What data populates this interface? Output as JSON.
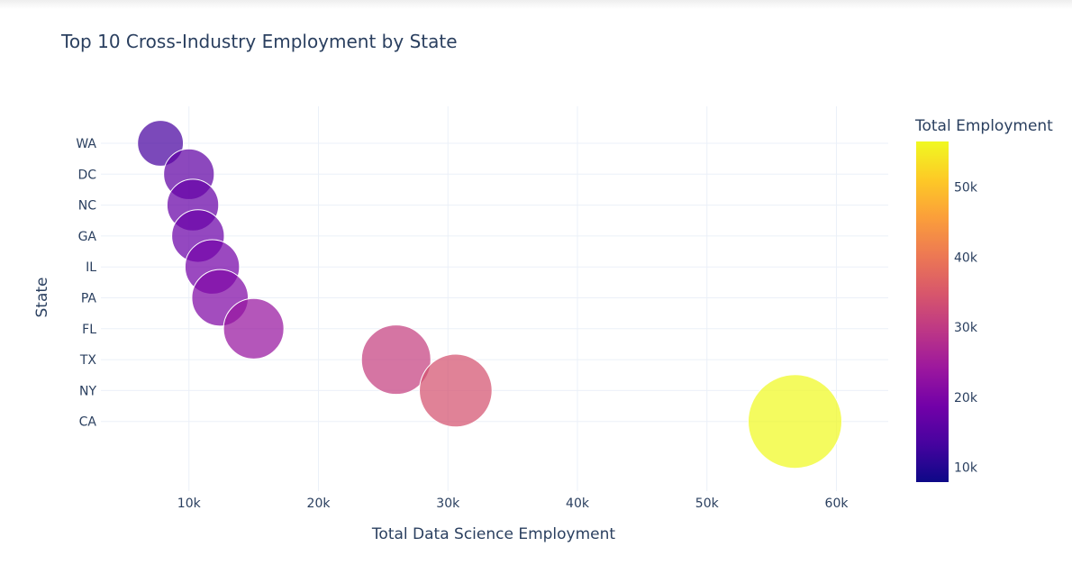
{
  "chart_data": {
    "type": "scatter",
    "title": "Top 10 Cross-Industry Employment by State",
    "xlabel": "Total Data Science Employment",
    "ylabel": "State",
    "xlim": [
      3200,
      64000
    ],
    "x_ticks": [
      {
        "value": 10000,
        "label": "10k"
      },
      {
        "value": 20000,
        "label": "20k"
      },
      {
        "value": 30000,
        "label": "30k"
      },
      {
        "value": 40000,
        "label": "40k"
      },
      {
        "value": 50000,
        "label": "50k"
      },
      {
        "value": 60000,
        "label": "60k"
      }
    ],
    "categories": [
      "WA",
      "DC",
      "NC",
      "GA",
      "IL",
      "PA",
      "FL",
      "TX",
      "NY",
      "CA"
    ],
    "points": [
      {
        "state": "WA",
        "x": 7800,
        "size_value": 13500
      },
      {
        "state": "DC",
        "x": 10000,
        "size_value": 16500
      },
      {
        "state": "NC",
        "x": 10300,
        "size_value": 17200
      },
      {
        "state": "GA",
        "x": 10700,
        "size_value": 17800
      },
      {
        "state": "IL",
        "x": 11800,
        "size_value": 19100
      },
      {
        "state": "PA",
        "x": 12400,
        "size_value": 20500
      },
      {
        "state": "FL",
        "x": 15000,
        "size_value": 23500
      },
      {
        "state": "TX",
        "x": 26000,
        "size_value": 31000
      },
      {
        "state": "NY",
        "x": 30600,
        "size_value": 34000
      },
      {
        "state": "CA",
        "x": 56800,
        "size_value": 56500
      }
    ],
    "grid": true,
    "colorbar": {
      "title": "Total Employment",
      "colorscale": "Plasma",
      "range": [
        7900,
        56500
      ],
      "ticks": [
        {
          "value": 10000,
          "label": "10k"
        },
        {
          "value": 20000,
          "label": "20k"
        },
        {
          "value": 30000,
          "label": "30k"
        },
        {
          "value": 40000,
          "label": "40k"
        },
        {
          "value": 50000,
          "label": "50k"
        }
      ],
      "stops": [
        "#0d0887",
        "#46039f",
        "#7201a8",
        "#9c179e",
        "#bd3786",
        "#d8576b",
        "#ed7953",
        "#fb9f3a",
        "#fdca26",
        "#f0f921"
      ]
    }
  }
}
